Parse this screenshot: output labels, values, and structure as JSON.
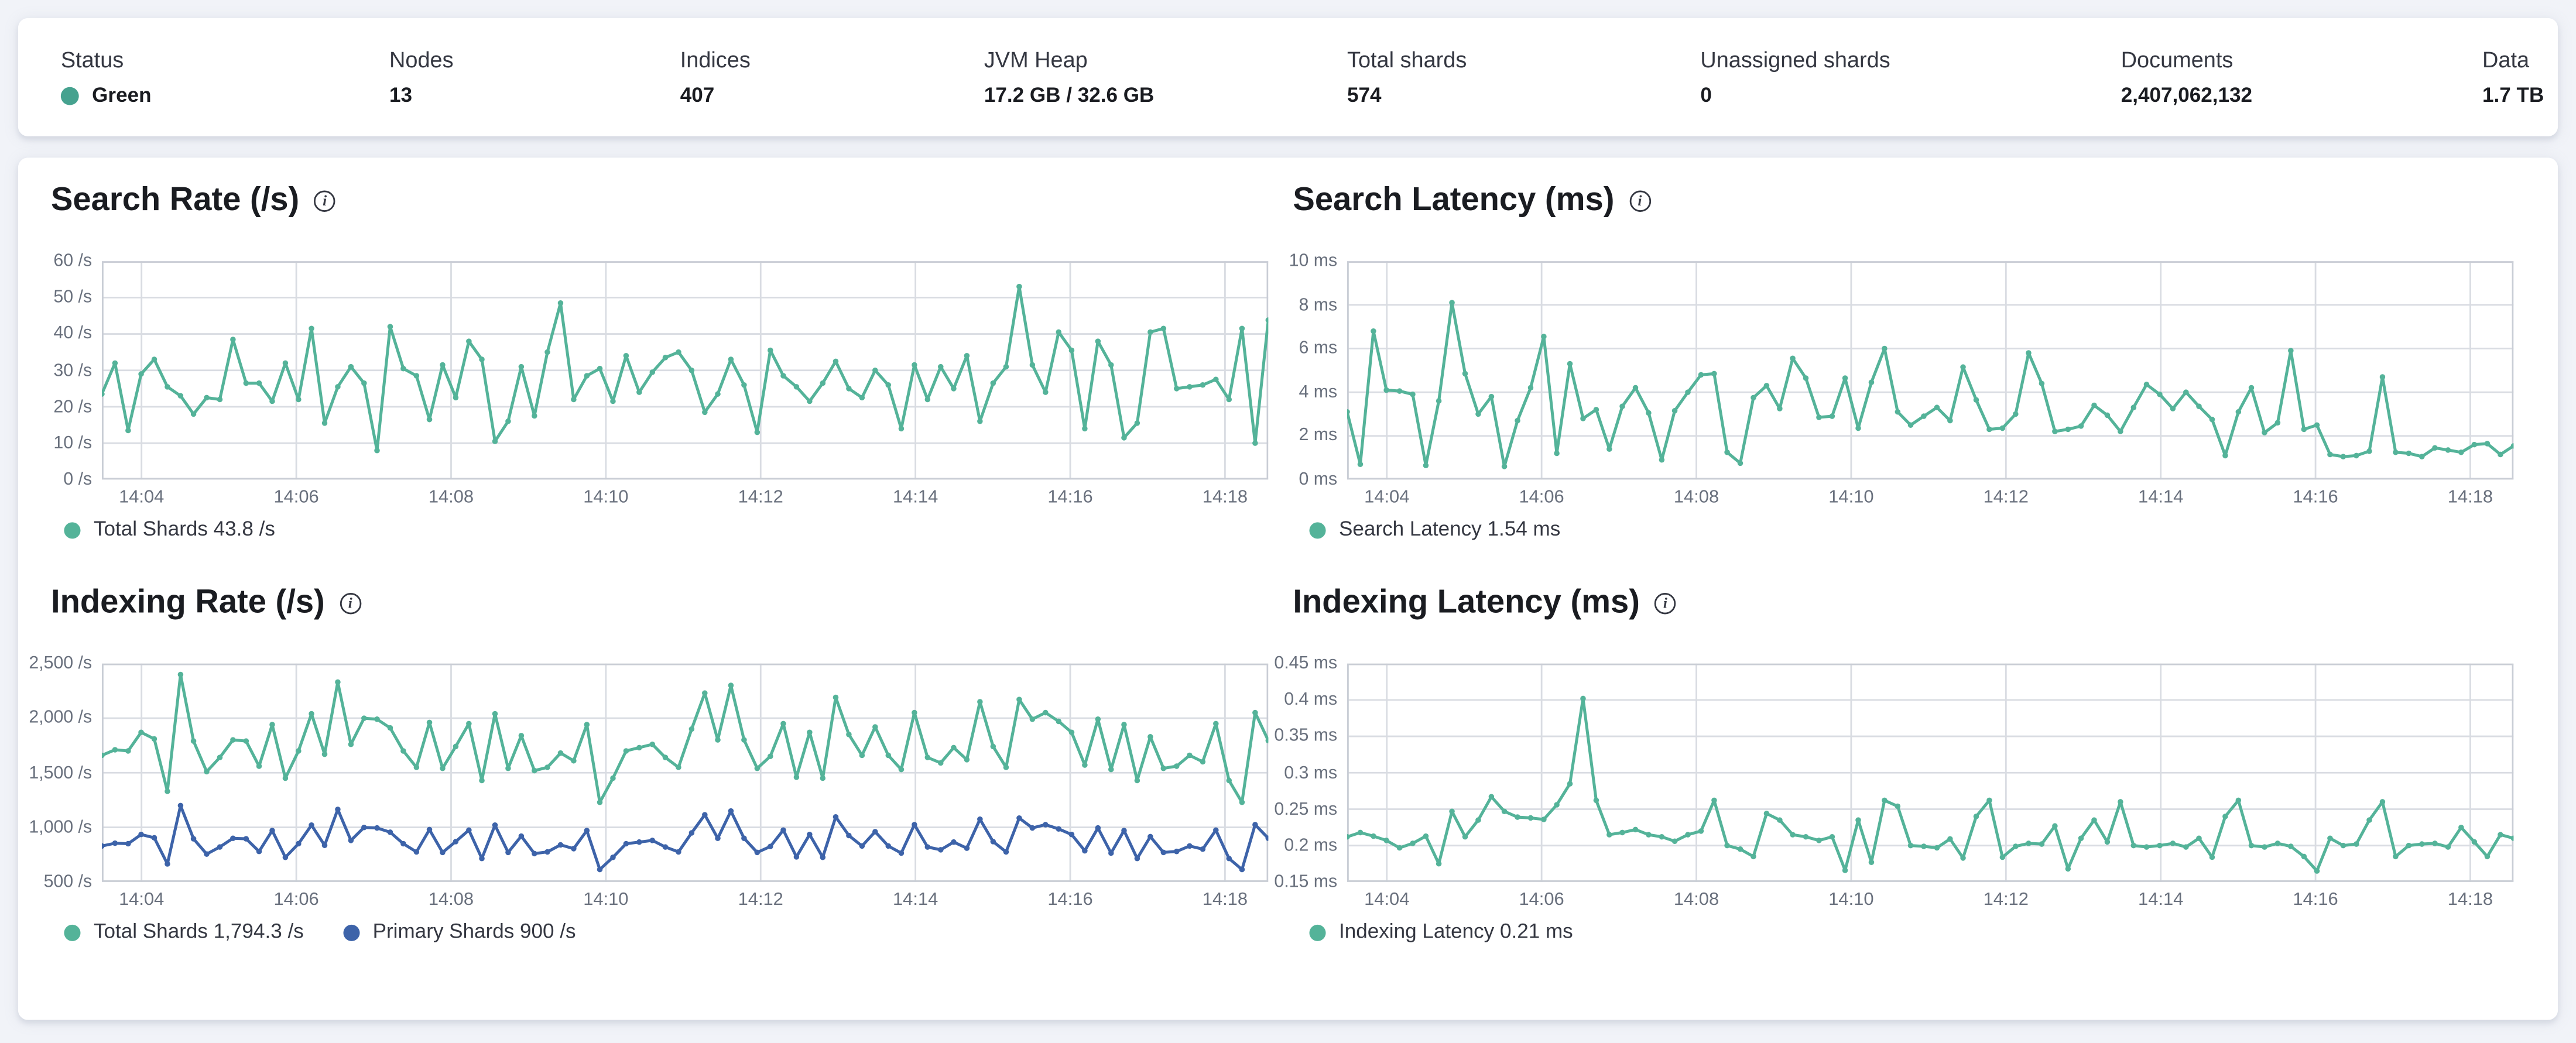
{
  "header": {
    "status_color": "#46a28f",
    "stats": [
      {
        "label": "Status",
        "value": "Green"
      },
      {
        "label": "Nodes",
        "value": "13"
      },
      {
        "label": "Indices",
        "value": "407"
      },
      {
        "label": "JVM Heap",
        "value": "17.2 GB / 32.6 GB"
      },
      {
        "label": "Total shards",
        "value": "574"
      },
      {
        "label": "Unassigned shards",
        "value": "0"
      },
      {
        "label": "Documents",
        "value": "2,407,062,132"
      },
      {
        "label": "Data",
        "value": "1.7 TB"
      }
    ]
  },
  "chart_data": [
    {
      "type": "line",
      "title": "Search Rate (/s)",
      "ylim": [
        0,
        60
      ],
      "grid": true,
      "legend_position": "bottom-left",
      "y_ticks": [
        {
          "v": 60,
          "t": "60 /s"
        },
        {
          "v": 50,
          "t": "50 /s"
        },
        {
          "v": 40,
          "t": "40 /s"
        },
        {
          "v": 30,
          "t": "30 /s"
        },
        {
          "v": 20,
          "t": "20 /s"
        },
        {
          "v": 10,
          "t": "10 /s"
        },
        {
          "v": 0,
          "t": "0 /s"
        }
      ],
      "x_ticks": [
        "14:04",
        "14:06",
        "14:08",
        "14:10",
        "14:12",
        "14:14",
        "14:16",
        "14:18"
      ],
      "series": [
        {
          "name": "Total Shards",
          "color": "#54b399",
          "legend": "Total Shards 43.8 /s",
          "values": [
            23.5,
            32,
            13.5,
            29,
            33,
            25.5,
            23,
            18,
            22.5,
            22,
            38.5,
            26.5,
            26.5,
            21.5,
            32,
            22,
            41.5,
            15.5,
            25.5,
            31,
            26.5,
            8,
            42,
            30.5,
            28.5,
            16.5,
            31.5,
            22.5,
            38,
            33,
            10.5,
            16,
            31,
            17.5,
            35,
            48.5,
            22,
            28.5,
            30.5,
            21.5,
            34,
            24,
            29.5,
            33.5,
            35,
            30,
            18.5,
            23.5,
            33,
            26,
            13,
            35.5,
            28.5,
            25.5,
            21.5,
            26.5,
            32.5,
            25,
            22.5,
            30,
            26,
            14,
            31.5,
            22,
            31,
            25,
            34,
            16,
            26.5,
            31,
            53,
            31.5,
            24,
            40.5,
            35.5,
            14,
            38,
            31.5,
            11.5,
            15.5,
            40.5,
            41.5,
            25,
            25.5,
            26,
            27.5,
            22,
            41.5,
            10,
            43.8
          ]
        }
      ]
    },
    {
      "type": "line",
      "title": "Search Latency (ms)",
      "ylim": [
        0,
        10
      ],
      "grid": true,
      "legend_position": "bottom-left",
      "y_ticks": [
        {
          "v": 10,
          "t": "10 ms"
        },
        {
          "v": 8,
          "t": "8 ms"
        },
        {
          "v": 6,
          "t": "6 ms"
        },
        {
          "v": 4,
          "t": "4 ms"
        },
        {
          "v": 2,
          "t": "2 ms"
        },
        {
          "v": 0,
          "t": "0 ms"
        }
      ],
      "x_ticks": [
        "14:04",
        "14:06",
        "14:08",
        "14:10",
        "14:12",
        "14:14",
        "14:16",
        "14:18"
      ],
      "series": [
        {
          "name": "Search Latency",
          "color": "#54b399",
          "legend": "Search Latency 1.54 ms",
          "values": [
            3.1,
            0.7,
            6.8,
            4.1,
            4.05,
            3.9,
            0.65,
            3.6,
            8.1,
            4.85,
            3.0,
            3.8,
            0.6,
            2.7,
            4.2,
            6.55,
            1.2,
            5.3,
            2.8,
            3.2,
            1.4,
            3.35,
            4.2,
            3.05,
            0.9,
            3.15,
            4.0,
            4.8,
            4.85,
            1.25,
            0.75,
            3.75,
            4.3,
            3.25,
            5.55,
            4.65,
            2.85,
            2.9,
            4.65,
            2.35,
            4.45,
            6.0,
            3.1,
            2.5,
            2.9,
            3.3,
            2.7,
            5.15,
            3.65,
            2.3,
            2.35,
            3.0,
            5.8,
            4.4,
            2.2,
            2.3,
            2.45,
            3.4,
            2.95,
            2.2,
            3.3,
            4.35,
            3.9,
            3.25,
            4.0,
            3.35,
            2.75,
            1.1,
            3.1,
            4.2,
            2.15,
            2.6,
            5.9,
            2.3,
            2.5,
            1.15,
            1.05,
            1.1,
            1.3,
            4.7,
            1.25,
            1.2,
            1.05,
            1.45,
            1.35,
            1.25,
            1.6,
            1.65,
            1.15,
            1.54
          ]
        }
      ]
    },
    {
      "type": "line",
      "title": "Indexing Rate (/s)",
      "ylim": [
        500,
        2500
      ],
      "grid": true,
      "legend_position": "bottom-left",
      "y_ticks": [
        {
          "v": 2500,
          "t": "2,500 /s"
        },
        {
          "v": 2000,
          "t": "2,000 /s"
        },
        {
          "v": 1500,
          "t": "1,500 /s"
        },
        {
          "v": 1000,
          "t": "1,000 /s"
        },
        {
          "v": 500,
          "t": "500 /s"
        }
      ],
      "x_ticks": [
        "14:04",
        "14:06",
        "14:08",
        "14:10",
        "14:12",
        "14:14",
        "14:16",
        "14:18"
      ],
      "series": [
        {
          "name": "Total Shards",
          "color": "#54b399",
          "legend": "Total Shards 1,794.3 /s",
          "values": [
            1660,
            1710,
            1700,
            1870,
            1810,
            1330,
            2400,
            1790,
            1510,
            1640,
            1800,
            1790,
            1560,
            1940,
            1450,
            1700,
            2040,
            1670,
            2330,
            1760,
            2000,
            1990,
            1910,
            1700,
            1550,
            1960,
            1540,
            1740,
            1950,
            1430,
            2040,
            1540,
            1840,
            1520,
            1550,
            1680,
            1610,
            1940,
            1230,
            1450,
            1700,
            1730,
            1760,
            1640,
            1550,
            1900,
            2230,
            1800,
            2300,
            1800,
            1540,
            1650,
            1950,
            1460,
            1870,
            1450,
            2190,
            1850,
            1660,
            1920,
            1660,
            1530,
            2050,
            1640,
            1590,
            1730,
            1620,
            2150,
            1740,
            1550,
            2170,
            1990,
            2050,
            1970,
            1870,
            1570,
            1990,
            1530,
            1940,
            1430,
            1830,
            1540,
            1560,
            1660,
            1600,
            1950,
            1430,
            1230,
            2050,
            1794.3
          ]
        },
        {
          "name": "Primary Shards",
          "color": "#3d63a9",
          "legend": "Primary Shards 900 /s",
          "values": [
            830,
            855,
            850,
            935,
            905,
            665,
            1200,
            895,
            755,
            820,
            900,
            895,
            780,
            970,
            725,
            850,
            1020,
            835,
            1165,
            880,
            1000,
            995,
            955,
            850,
            775,
            980,
            770,
            870,
            975,
            715,
            1020,
            770,
            920,
            760,
            775,
            840,
            805,
            970,
            615,
            725,
            850,
            865,
            880,
            820,
            775,
            950,
            1115,
            900,
            1150,
            900,
            770,
            825,
            975,
            730,
            935,
            725,
            1095,
            925,
            830,
            960,
            830,
            765,
            1025,
            820,
            795,
            865,
            810,
            1075,
            870,
            775,
            1085,
            995,
            1025,
            985,
            935,
            785,
            995,
            765,
            970,
            715,
            915,
            770,
            780,
            830,
            800,
            975,
            715,
            615,
            1025,
            900
          ]
        }
      ]
    },
    {
      "type": "line",
      "title": "Indexing Latency (ms)",
      "ylim": [
        0.15,
        0.45
      ],
      "grid": true,
      "legend_position": "bottom-left",
      "y_ticks": [
        {
          "v": 0.45,
          "t": "0.45 ms"
        },
        {
          "v": 0.4,
          "t": "0.4 ms"
        },
        {
          "v": 0.35,
          "t": "0.35 ms"
        },
        {
          "v": 0.3,
          "t": "0.3 ms"
        },
        {
          "v": 0.25,
          "t": "0.25 ms"
        },
        {
          "v": 0.2,
          "t": "0.2 ms"
        },
        {
          "v": 0.15,
          "t": "0.15 ms"
        }
      ],
      "x_ticks": [
        "14:04",
        "14:06",
        "14:08",
        "14:10",
        "14:12",
        "14:14",
        "14:16",
        "14:18"
      ],
      "series": [
        {
          "name": "Indexing Latency",
          "color": "#54b399",
          "legend": "Indexing Latency 0.21 ms",
          "values": [
            0.212,
            0.218,
            0.213,
            0.207,
            0.197,
            0.203,
            0.213,
            0.175,
            0.247,
            0.212,
            0.235,
            0.267,
            0.247,
            0.239,
            0.238,
            0.236,
            0.256,
            0.285,
            0.402,
            0.262,
            0.215,
            0.218,
            0.222,
            0.215,
            0.212,
            0.206,
            0.215,
            0.22,
            0.262,
            0.2,
            0.195,
            0.185,
            0.244,
            0.235,
            0.215,
            0.212,
            0.207,
            0.212,
            0.166,
            0.235,
            0.177,
            0.262,
            0.254,
            0.2,
            0.199,
            0.197,
            0.209,
            0.183,
            0.24,
            0.262,
            0.184,
            0.199,
            0.203,
            0.202,
            0.227,
            0.168,
            0.21,
            0.235,
            0.205,
            0.26,
            0.2,
            0.198,
            0.2,
            0.203,
            0.198,
            0.21,
            0.184,
            0.24,
            0.262,
            0.2,
            0.198,
            0.203,
            0.199,
            0.185,
            0.165,
            0.21,
            0.2,
            0.202,
            0.235,
            0.26,
            0.185,
            0.2,
            0.202,
            0.203,
            0.198,
            0.225,
            0.205,
            0.185,
            0.215,
            0.21
          ]
        }
      ]
    }
  ]
}
